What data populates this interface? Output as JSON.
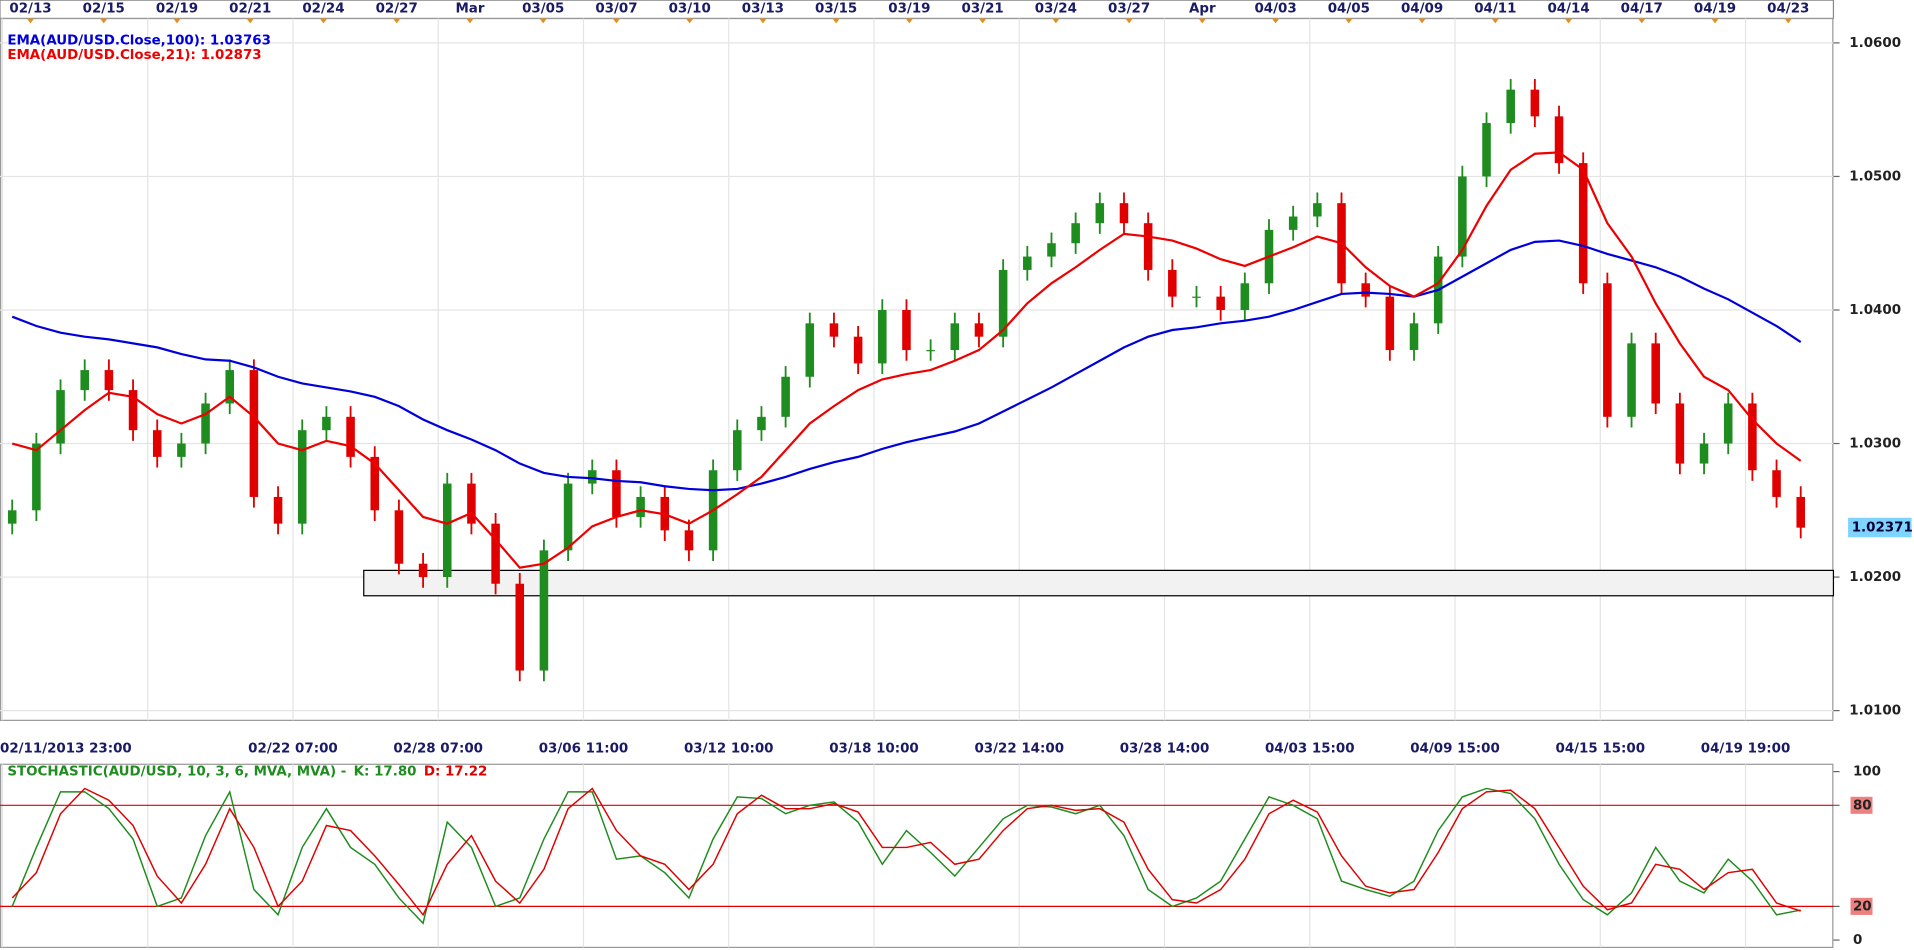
{
  "chart_data": [
    {
      "type": "candlestick",
      "ylim": [
        1.00927,
        1.06183
      ],
      "yticks": [
        {
          "value": 1.01,
          "label": "1.0100"
        },
        {
          "value": 1.02,
          "label": "1.0200"
        },
        {
          "value": 1.03,
          "label": "1.0300"
        },
        {
          "value": 1.04,
          "label": "1.0400"
        },
        {
          "value": 1.05,
          "label": "1.0500"
        },
        {
          "value": 1.06,
          "label": "1.0600"
        }
      ],
      "grid": true,
      "top_labels": [
        "02/13",
        "02/15",
        "02/19",
        "02/21",
        "02/24",
        "02/27",
        "Mar",
        "03/05",
        "03/07",
        "03/10",
        "03/13",
        "03/15",
        "03/19",
        "03/21",
        "03/24",
        "03/27",
        "Apr",
        "04/03",
        "04/05",
        "04/09",
        "04/11",
        "04/14",
        "04/17",
        "04/19",
        "04/23"
      ],
      "x_labels": [
        "02/11/2013 23:00",
        "02/22 07:00",
        "02/28 07:00",
        "03/06 11:00",
        "03/12 10:00",
        "03/18 10:00",
        "03/22 14:00",
        "03/28 14:00",
        "04/03 15:00",
        "04/09 15:00",
        "04/15 15:00",
        "04/19 19:00"
      ],
      "up_color": "#1e8c1e",
      "down_color": "#e00000",
      "ohlc": [
        [
          1.024,
          1.0258,
          1.0232,
          1.025
        ],
        [
          1.025,
          1.0308,
          1.0242,
          1.03
        ],
        [
          1.03,
          1.0348,
          1.0292,
          1.034
        ],
        [
          1.034,
          1.0363,
          1.0332,
          1.0355
        ],
        [
          1.0355,
          1.0363,
          1.0332,
          1.034
        ],
        [
          1.034,
          1.0348,
          1.0302,
          1.031
        ],
        [
          1.031,
          1.0318,
          1.0282,
          1.029
        ],
        [
          1.029,
          1.0308,
          1.0282,
          1.03
        ],
        [
          1.03,
          1.0338,
          1.0292,
          1.033
        ],
        [
          1.033,
          1.0363,
          1.0322,
          1.0355
        ],
        [
          1.0355,
          1.0363,
          1.0252,
          1.026
        ],
        [
          1.026,
          1.0268,
          1.0232,
          1.024
        ],
        [
          1.024,
          1.0318,
          1.0232,
          1.031
        ],
        [
          1.031,
          1.0328,
          1.0302,
          1.032
        ],
        [
          1.032,
          1.0328,
          1.0282,
          1.029
        ],
        [
          1.029,
          1.0298,
          1.0242,
          1.025
        ],
        [
          1.025,
          1.0258,
          1.0202,
          1.021
        ],
        [
          1.021,
          1.0218,
          1.0192,
          1.02
        ],
        [
          1.02,
          1.0278,
          1.0192,
          1.027
        ],
        [
          1.027,
          1.0278,
          1.0232,
          1.024
        ],
        [
          1.024,
          1.0248,
          1.0187,
          1.0195
        ],
        [
          1.0195,
          1.0203,
          1.0122,
          1.013
        ],
        [
          1.013,
          1.0228,
          1.0122,
          1.022
        ],
        [
          1.022,
          1.0278,
          1.0212,
          1.027
        ],
        [
          1.027,
          1.0288,
          1.0262,
          1.028
        ],
        [
          1.028,
          1.0288,
          1.0237,
          1.0245
        ],
        [
          1.0245,
          1.0268,
          1.0237,
          1.026
        ],
        [
          1.026,
          1.0268,
          1.0227,
          1.0235
        ],
        [
          1.0235,
          1.0243,
          1.0212,
          1.022
        ],
        [
          1.022,
          1.0288,
          1.0212,
          1.028
        ],
        [
          1.028,
          1.0318,
          1.0272,
          1.031
        ],
        [
          1.031,
          1.0328,
          1.0302,
          1.032
        ],
        [
          1.032,
          1.0358,
          1.0312,
          1.035
        ],
        [
          1.035,
          1.0398,
          1.0342,
          1.039
        ],
        [
          1.039,
          1.0398,
          1.0372,
          1.038
        ],
        [
          1.038,
          1.0388,
          1.0352,
          1.036
        ],
        [
          1.036,
          1.0408,
          1.0352,
          1.04
        ],
        [
          1.04,
          1.0408,
          1.0362,
          1.037
        ],
        [
          1.037,
          1.0378,
          1.0362,
          1.037
        ],
        [
          1.037,
          1.0398,
          1.0362,
          1.039
        ],
        [
          1.039,
          1.0398,
          1.0372,
          1.038
        ],
        [
          1.038,
          1.0438,
          1.0372,
          1.043
        ],
        [
          1.043,
          1.0448,
          1.0422,
          1.044
        ],
        [
          1.044,
          1.0458,
          1.0432,
          1.045
        ],
        [
          1.045,
          1.0473,
          1.0442,
          1.0465
        ],
        [
          1.0465,
          1.0488,
          1.0457,
          1.048
        ],
        [
          1.048,
          1.0488,
          1.0457,
          1.0465
        ],
        [
          1.0465,
          1.0473,
          1.0422,
          1.043
        ],
        [
          1.043,
          1.0438,
          1.0402,
          1.041
        ],
        [
          1.041,
          1.0418,
          1.0402,
          1.041
        ],
        [
          1.041,
          1.0418,
          1.0392,
          1.04
        ],
        [
          1.04,
          1.0428,
          1.0392,
          1.042
        ],
        [
          1.042,
          1.0468,
          1.0412,
          1.046
        ],
        [
          1.046,
          1.0478,
          1.0452,
          1.047
        ],
        [
          1.047,
          1.0488,
          1.0462,
          1.048
        ],
        [
          1.048,
          1.0488,
          1.0412,
          1.042
        ],
        [
          1.042,
          1.0428,
          1.0402,
          1.041
        ],
        [
          1.041,
          1.0418,
          1.0362,
          1.037
        ],
        [
          1.037,
          1.0398,
          1.0362,
          1.039
        ],
        [
          1.039,
          1.0448,
          1.0382,
          1.044
        ],
        [
          1.044,
          1.0508,
          1.0432,
          1.05
        ],
        [
          1.05,
          1.0548,
          1.0492,
          1.054
        ],
        [
          1.054,
          1.0573,
          1.0532,
          1.0565
        ],
        [
          1.0565,
          1.0573,
          1.0537,
          1.0545
        ],
        [
          1.0545,
          1.0553,
          1.0502,
          1.051
        ],
        [
          1.051,
          1.0518,
          1.0412,
          1.042
        ],
        [
          1.042,
          1.0428,
          1.0312,
          1.032
        ],
        [
          1.032,
          1.0383,
          1.0312,
          1.0375
        ],
        [
          1.0375,
          1.0383,
          1.0322,
          1.033
        ],
        [
          1.033,
          1.0338,
          1.0277,
          1.0285
        ],
        [
          1.0285,
          1.0308,
          1.0277,
          1.03
        ],
        [
          1.03,
          1.0338,
          1.0292,
          1.033
        ],
        [
          1.033,
          1.0338,
          1.0272,
          1.028
        ],
        [
          1.028,
          1.0288,
          1.0252,
          1.026
        ],
        [
          1.026,
          1.0268,
          1.0229,
          1.0237
        ]
      ],
      "series": [
        {
          "name": "EMA(AUD/USD.Close,100): 1.03763",
          "color": "#0000dd",
          "values": [
            1.0395,
            1.0388,
            1.0383,
            1.038,
            1.0378,
            1.0375,
            1.0372,
            1.0367,
            1.0363,
            1.0362,
            1.0357,
            1.035,
            1.0345,
            1.0342,
            1.0339,
            1.0335,
            1.0328,
            1.0318,
            1.031,
            1.0303,
            1.0295,
            1.0285,
            1.0278,
            1.0275,
            1.0274,
            1.0272,
            1.0271,
            1.0268,
            1.0266,
            1.0265,
            1.0266,
            1.027,
            1.0275,
            1.0281,
            1.0286,
            1.029,
            1.0296,
            1.0301,
            1.0305,
            1.0309,
            1.0315,
            1.0324,
            1.0333,
            1.0342,
            1.0352,
            1.0362,
            1.0372,
            1.038,
            1.0385,
            1.0387,
            1.039,
            1.0392,
            1.0395,
            1.04,
            1.0406,
            1.0412,
            1.0413,
            1.0412,
            1.041,
            1.0415,
            1.0425,
            1.0435,
            1.0445,
            1.0451,
            1.0452,
            1.0448,
            1.0442,
            1.0437,
            1.0432,
            1.0425,
            1.0416,
            1.0408,
            1.0398,
            1.0388,
            1.0376
          ]
        },
        {
          "name": "EMA(AUD/USD.Close,21): 1.02873",
          "color": "#ee0000",
          "values": [
            1.03,
            1.0295,
            1.031,
            1.0325,
            1.0338,
            1.0335,
            1.0322,
            1.0315,
            1.0322,
            1.0335,
            1.032,
            1.03,
            1.0295,
            1.0302,
            1.0298,
            1.0285,
            1.0265,
            1.0245,
            1.024,
            1.0248,
            1.0228,
            1.0207,
            1.021,
            1.0222,
            1.0238,
            1.0245,
            1.025,
            1.0247,
            1.024,
            1.025,
            1.0262,
            1.0275,
            1.0295,
            1.0315,
            1.0328,
            1.034,
            1.0348,
            1.0352,
            1.0355,
            1.0362,
            1.037,
            1.0385,
            1.0405,
            1.042,
            1.0432,
            1.0445,
            1.0457,
            1.0455,
            1.0452,
            1.0446,
            1.0438,
            1.0433,
            1.044,
            1.0447,
            1.0455,
            1.045,
            1.0432,
            1.0418,
            1.041,
            1.042,
            1.0445,
            1.0478,
            1.0505,
            1.0517,
            1.0518,
            1.0505,
            1.0465,
            1.044,
            1.0405,
            1.0375,
            1.035,
            1.034,
            1.0318,
            1.03,
            1.0287
          ]
        }
      ],
      "zone": [
        1.0186,
        1.0205
      ],
      "last_price": {
        "value": 1.02371,
        "label": "1.02371"
      }
    },
    {
      "type": "line",
      "title": "STOCHASTIC(AUD/USD, 10, 3, 6, MVA, MVA) -",
      "ylim": [
        0,
        100
      ],
      "yticks": [
        0,
        20,
        80,
        100
      ],
      "hlines": [
        20,
        80
      ],
      "series": [
        {
          "name": "K: 17.80",
          "color": "#1e8c1e",
          "values": [
            20,
            55,
            88,
            88,
            78,
            60,
            20,
            25,
            62,
            88,
            30,
            15,
            55,
            78,
            55,
            45,
            25,
            10,
            70,
            55,
            20,
            25,
            60,
            88,
            88,
            48,
            50,
            40,
            25,
            60,
            85,
            84,
            75,
            80,
            82,
            70,
            45,
            65,
            52,
            38,
            55,
            72,
            80,
            79,
            75,
            80,
            62,
            30,
            20,
            25,
            35,
            60,
            85,
            80,
            72,
            35,
            30,
            26,
            35,
            65,
            85,
            90,
            87,
            72,
            45,
            24,
            15,
            28,
            55,
            35,
            28,
            48,
            35,
            15,
            17.8
          ]
        },
        {
          "name": "D: 17.22",
          "color": "#e00000",
          "values": [
            25,
            40,
            75,
            90,
            83,
            68,
            38,
            22,
            45,
            78,
            55,
            20,
            35,
            68,
            65,
            50,
            33,
            15,
            45,
            62,
            35,
            22,
            42,
            78,
            90,
            65,
            50,
            45,
            30,
            45,
            75,
            86,
            78,
            78,
            81,
            76,
            55,
            55,
            58,
            45,
            48,
            65,
            78,
            80,
            77,
            78,
            70,
            42,
            24,
            22,
            30,
            48,
            75,
            83,
            76,
            50,
            32,
            28,
            30,
            52,
            78,
            88,
            89,
            78,
            55,
            32,
            18,
            22,
            45,
            42,
            30,
            40,
            42,
            22,
            17.22
          ]
        }
      ]
    }
  ]
}
